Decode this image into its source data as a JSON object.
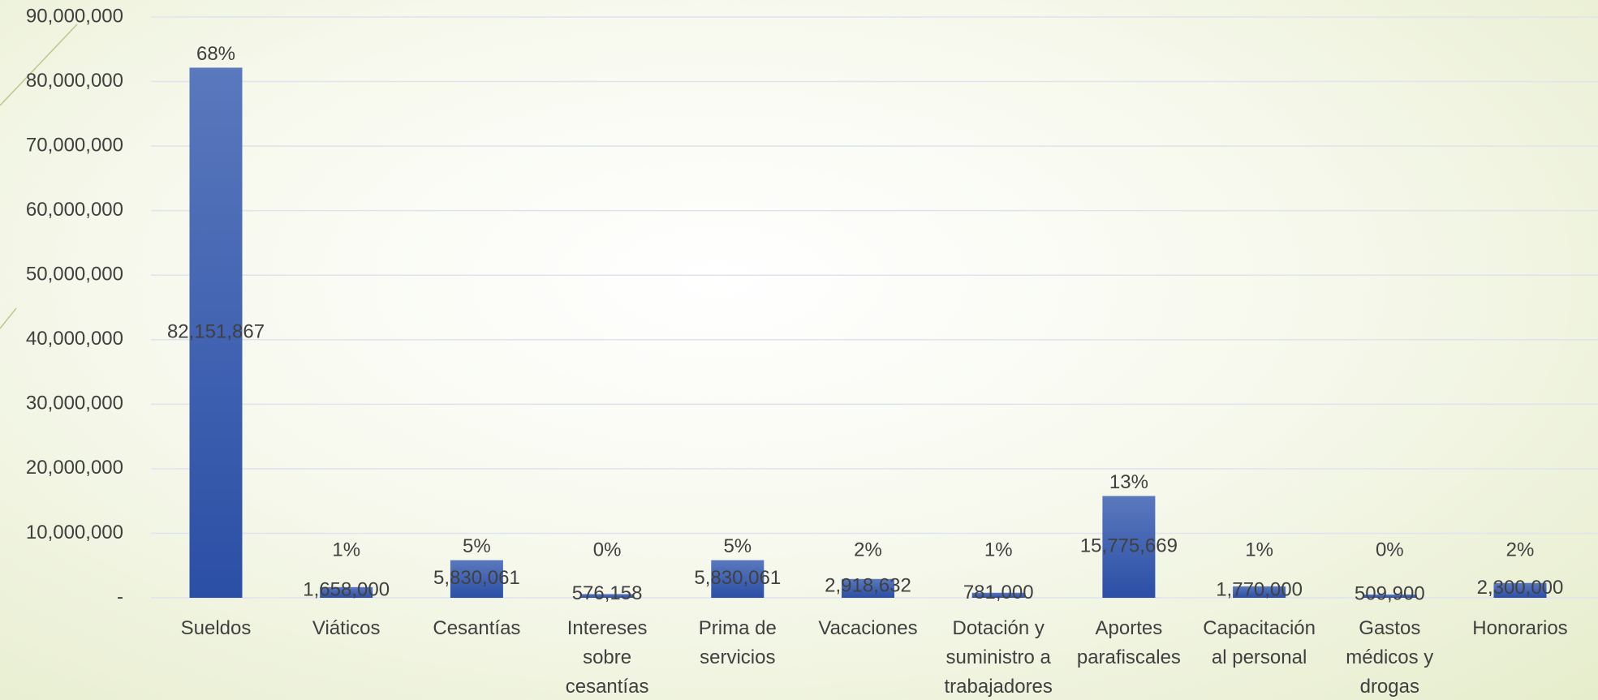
{
  "chart_data": {
    "type": "bar",
    "categories": [
      "Sueldos",
      "Viáticos",
      "Cesantías",
      "Intereses sobre cesantías",
      "Prima de servicios",
      "Vacaciones",
      "Dotación y suministro a trabajadores",
      "Aportes parafiscales",
      "Capacitación al personal",
      "Gastos médicos y drogas",
      "Honorarios"
    ],
    "values": [
      82151867,
      1658000,
      5830061,
      576158,
      5830061,
      2918632,
      781000,
      15775669,
      1770000,
      509900,
      2300000
    ],
    "value_labels": [
      "82,151,867",
      "1,658,000",
      "5,830,061",
      "576,158",
      "5,830,061",
      "2,918,632",
      "781,000",
      "15,775,669",
      "1,770,000",
      "509,900",
      "2,300,000"
    ],
    "percentages": [
      68,
      1,
      5,
      0,
      5,
      2,
      1,
      13,
      1,
      0,
      2
    ],
    "percentage_labels": [
      "68%",
      "1%",
      "5%",
      "0%",
      "5%",
      "2%",
      "1%",
      "13%",
      "1%",
      "0%",
      "2%"
    ],
    "color": "#3355a8",
    "ylim": [
      0,
      90000000
    ],
    "yticks": [
      {
        "value": 0,
        "label": "-"
      },
      {
        "value": 10000000,
        "label": "10,000,000"
      },
      {
        "value": 20000000,
        "label": "20,000,000"
      },
      {
        "value": 30000000,
        "label": "30,000,000"
      },
      {
        "value": 40000000,
        "label": "40,000,000"
      },
      {
        "value": 50000000,
        "label": "50,000,000"
      },
      {
        "value": 60000000,
        "label": "60,000,000"
      },
      {
        "value": 70000000,
        "label": "70,000,000"
      },
      {
        "value": 80000000,
        "label": "80,000,000"
      },
      {
        "value": 90000000,
        "label": "90,000,000"
      }
    ],
    "grid": true
  }
}
